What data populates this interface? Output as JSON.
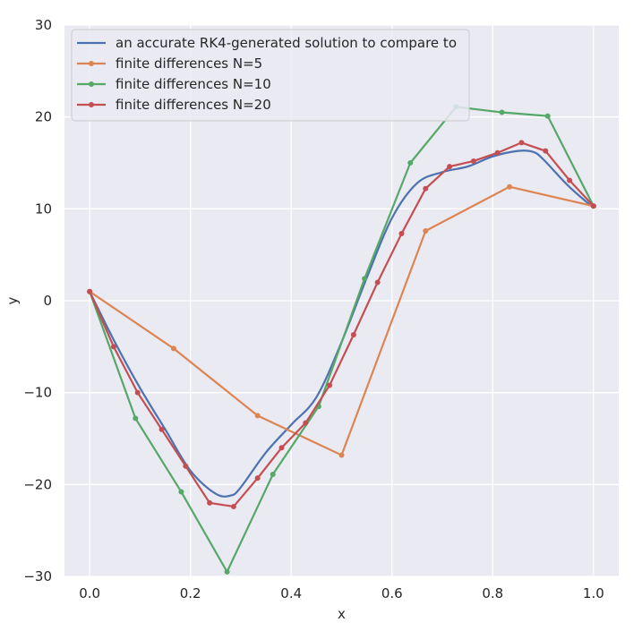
{
  "chart_data": {
    "type": "line",
    "title": "",
    "xlabel": "x",
    "ylabel": "y",
    "xlim": [
      -0.05,
      1.05
    ],
    "ylim": [
      -30,
      30
    ],
    "xticks": [
      0.0,
      0.2,
      0.4,
      0.6,
      0.8,
      1.0
    ],
    "xtick_labels": [
      "0.0",
      "0.2",
      "0.4",
      "0.6",
      "0.8",
      "1.0"
    ],
    "yticks": [
      -30,
      -20,
      -10,
      0,
      10,
      20,
      30
    ],
    "ytick_labels": [
      "−30",
      "−20",
      "−10",
      "0",
      "10",
      "20",
      "30"
    ],
    "grid": true,
    "legend_position": "top-left",
    "series": [
      {
        "name": "an accurate RK4-generated solution to compare to",
        "color": "#4c72b0",
        "markers": false,
        "x": [
          0.0,
          0.05,
          0.1,
          0.15,
          0.2,
          0.25,
          0.28,
          0.3,
          0.35,
          0.4,
          0.45,
          0.5,
          0.55,
          0.6,
          0.65,
          0.7,
          0.75,
          0.8,
          0.85,
          0.88,
          0.9,
          0.95,
          1.0
        ],
        "y": [
          1.0,
          -4.5,
          -9.5,
          -14.0,
          -18.5,
          -21.0,
          -21.2,
          -20.3,
          -16.5,
          -13.5,
          -10.5,
          -4.5,
          2.5,
          9.0,
          12.8,
          14.0,
          14.6,
          15.7,
          16.3,
          16.2,
          15.4,
          12.5,
          10.1
        ]
      },
      {
        "name": "finite differences N=5",
        "color": "#dd8452",
        "markers": true,
        "x": [
          0.0,
          0.1667,
          0.3333,
          0.5,
          0.6667,
          0.8333,
          1.0
        ],
        "y": [
          1.0,
          -5.2,
          -12.5,
          -16.8,
          7.6,
          12.4,
          10.3
        ]
      },
      {
        "name": "finite differences N=10",
        "color": "#55a868",
        "markers": true,
        "x": [
          0.0,
          0.0909,
          0.1818,
          0.2727,
          0.3636,
          0.4545,
          0.5455,
          0.6364,
          0.7273,
          0.8182,
          0.9091,
          1.0
        ],
        "y": [
          1.0,
          -12.8,
          -20.8,
          -29.5,
          -18.9,
          -11.5,
          2.4,
          15.0,
          21.1,
          20.5,
          20.1,
          10.3
        ]
      },
      {
        "name": "finite differences N=20",
        "color": "#c44e52",
        "markers": true,
        "x": [
          0.0,
          0.0476,
          0.0952,
          0.1429,
          0.1905,
          0.2381,
          0.2857,
          0.3333,
          0.381,
          0.4286,
          0.4762,
          0.5238,
          0.5714,
          0.619,
          0.6667,
          0.7143,
          0.7619,
          0.8095,
          0.8571,
          0.9048,
          0.9524,
          1.0
        ],
        "y": [
          1.0,
          -5.0,
          -10.0,
          -14.0,
          -18.0,
          -22.0,
          -22.4,
          -19.3,
          -16.0,
          -13.3,
          -9.2,
          -3.7,
          2.0,
          7.3,
          12.2,
          14.6,
          15.2,
          16.1,
          17.2,
          16.3,
          13.1,
          10.3
        ]
      }
    ]
  }
}
